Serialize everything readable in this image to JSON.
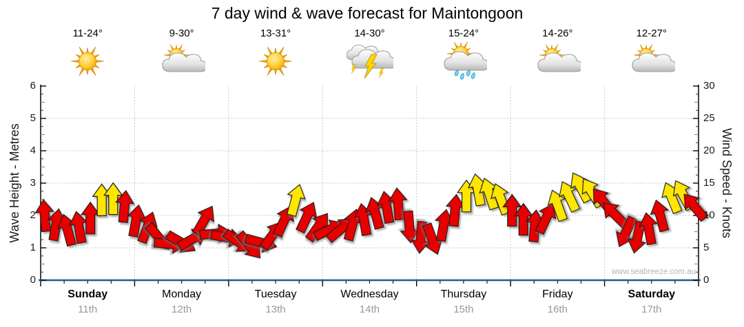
{
  "title": "7 day wind & wave forecast for Maintongoon",
  "watermark": "www.seabreeze.com.au",
  "colors": {
    "arrow_red": "#e60000",
    "arrow_yellow": "#ffe600",
    "arrow_outline": "#1a1a1a",
    "bottom_axis": "#1f5c8b",
    "grid": "#b5b5b5",
    "date_gray": "#999999"
  },
  "days": [
    {
      "name": "Sunday",
      "date": "11th",
      "temp": "11-24°",
      "icon": "sunny",
      "bold": true
    },
    {
      "name": "Monday",
      "date": "12th",
      "temp": "9-30°",
      "icon": "sun-cloud",
      "bold": false
    },
    {
      "name": "Tuesday",
      "date": "13th",
      "temp": "13-31°",
      "icon": "sunny",
      "bold": false
    },
    {
      "name": "Wednesday",
      "date": "14th",
      "temp": "14-30°",
      "icon": "storm",
      "bold": false
    },
    {
      "name": "Thursday",
      "date": "15th",
      "temp": "15-24°",
      "icon": "sun-cloud-rain",
      "bold": false
    },
    {
      "name": "Friday",
      "date": "16th",
      "temp": "14-26°",
      "icon": "sun-cloud",
      "bold": false
    },
    {
      "name": "Saturday",
      "date": "17th",
      "temp": "12-27°",
      "icon": "sun-cloud",
      "bold": true
    }
  ],
  "y_left": {
    "label": "Wave Height - Metres",
    "ticks": [
      0,
      1,
      2,
      3,
      4,
      5,
      6
    ],
    "min": 0,
    "max": 6
  },
  "y_right": {
    "label": "Wind Speed - Knots",
    "ticks": [
      0,
      5,
      10,
      15,
      20,
      25,
      30
    ],
    "min": 0,
    "max": 30
  },
  "chart_data": {
    "type": "wind-arrows",
    "x_axis": "7 days (Sunday 11th - Saturday 17th), ~3-hourly steps",
    "ylabel_left": "Wave Height - Metres",
    "ylabel_right": "Wind Speed - Knots",
    "ylim_left": [
      0,
      6
    ],
    "ylim_right": [
      0,
      30
    ],
    "grid": "dotted horizontal every 5 knots, dotted vertical at day boundaries",
    "legend": "arrow height = wind speed in knots; arrow rotation = wind direction; red = lighter wind, yellow = ~12+ knots",
    "wind_knots": [
      10.0,
      8.6,
      7.8,
      8.2,
      9.6,
      12.4,
      12.6,
      11.4,
      9.2,
      8.2,
      6.6,
      5.6,
      5.8,
      6.4,
      9.3,
      7.2,
      6.6,
      5.9,
      5.3,
      5.8,
      7.0,
      9.2,
      12.4,
      9.8,
      8.3,
      7.8,
      7.9,
      8.6,
      9.4,
      10.4,
      11.3,
      11.8,
      8.2,
      6.6,
      6.3,
      8.5,
      10.8,
      13.0,
      14.0,
      13.4,
      12.6,
      10.8,
      9.4,
      8.4,
      9.6,
      11.6,
      13.0,
      14.4,
      13.6,
      12.2,
      10.2,
      7.4,
      6.6,
      8.0,
      10.0,
      12.8,
      13.2,
      11.4
    ],
    "wind_dir_deg": [
      -5,
      10,
      -15,
      -10,
      0,
      0,
      0,
      5,
      10,
      20,
      140,
      95,
      120,
      60,
      30,
      85,
      100,
      125,
      140,
      105,
      35,
      25,
      15,
      25,
      35,
      65,
      50,
      15,
      -10,
      -15,
      -10,
      -5,
      175,
      185,
      160,
      10,
      5,
      0,
      -10,
      -18,
      -20,
      0,
      0,
      5,
      25,
      -20,
      -25,
      -28,
      -32,
      -38,
      -45,
      205,
      192,
      -10,
      -15,
      -22,
      -28,
      -40
    ],
    "arrow_colors": [
      "red",
      "red",
      "red",
      "red",
      "red",
      "yellow",
      "yellow",
      "red",
      "red",
      "red",
      "red",
      "red",
      "red",
      "red",
      "red",
      "red",
      "red",
      "red",
      "red",
      "red",
      "red",
      "red",
      "yellow",
      "red",
      "red",
      "red",
      "red",
      "red",
      "red",
      "red",
      "red",
      "red",
      "red",
      "red",
      "red",
      "red",
      "red",
      "yellow",
      "yellow",
      "yellow",
      "yellow",
      "red",
      "red",
      "red",
      "red",
      "yellow",
      "yellow",
      "yellow",
      "yellow",
      "red",
      "red",
      "red",
      "red",
      "red",
      "red",
      "yellow",
      "yellow",
      "red"
    ]
  }
}
